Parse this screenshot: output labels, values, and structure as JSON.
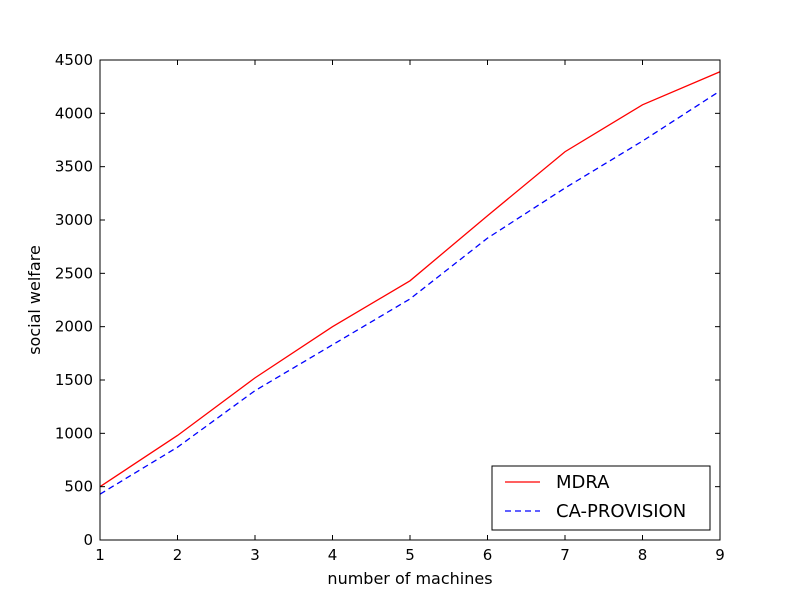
{
  "chart_data": {
    "type": "line",
    "xlabel": "number of machines",
    "ylabel": "social welfare",
    "xlim": [
      1,
      9
    ],
    "ylim": [
      0,
      4500
    ],
    "xticks": [
      "1",
      "2",
      "3",
      "4",
      "5",
      "6",
      "7",
      "8",
      "9"
    ],
    "yticks": [
      "0",
      "500",
      "1000",
      "1500",
      "2000",
      "2500",
      "3000",
      "3500",
      "4000",
      "4500"
    ],
    "grid": false,
    "legend_position": "lower-right",
    "x": [
      1,
      2,
      3,
      4,
      5,
      6,
      7,
      8,
      9
    ],
    "series": [
      {
        "name": "MDRA",
        "color": "#ff0000",
        "linestyle": "solid",
        "values": [
          500,
          980,
          1520,
          2000,
          2430,
          3040,
          3640,
          4080,
          4390
        ]
      },
      {
        "name": "CA-PROVISION",
        "color": "#0000ff",
        "linestyle": "dashed",
        "values": [
          430,
          870,
          1400,
          1830,
          2260,
          2830,
          3300,
          3740,
          4210
        ]
      }
    ]
  }
}
